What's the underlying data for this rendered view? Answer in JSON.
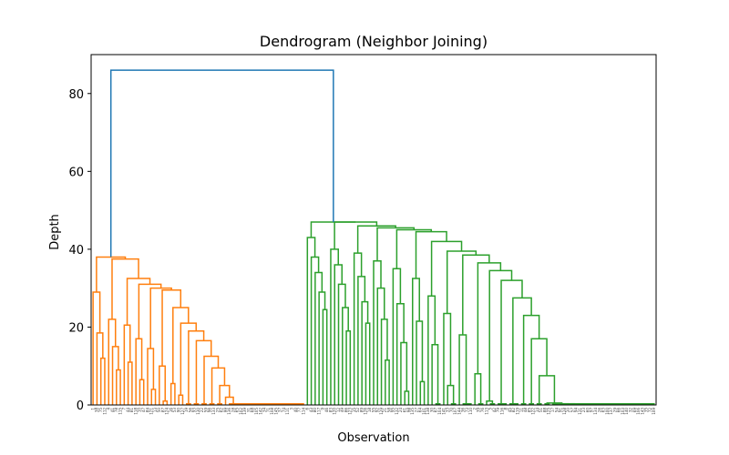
{
  "chart_data": {
    "type": "dendrogram",
    "title": "Dendrogram (Neighbor Joining)",
    "xlabel": "Observation",
    "ylabel": "Depth",
    "ylim": [
      0,
      90
    ],
    "yticks": [
      0,
      20,
      40,
      60,
      80
    ],
    "grid": false,
    "root_depth": 86,
    "colors": {
      "root": "#1f77b4",
      "cluster_1": "#ff7f0e",
      "cluster_2": "#2ca02c"
    },
    "clusters": [
      {
        "name": "cluster_1",
        "top_depth": 38,
        "leaf_count": 55,
        "merge_heights": [
          37.5,
          32.5,
          31,
          30,
          29.5,
          29,
          25,
          22,
          21,
          20.5,
          19,
          18.5,
          17,
          16.5,
          15,
          14.5,
          12.5,
          12,
          11,
          10,
          9.5,
          9,
          6.5,
          6,
          5.5,
          5,
          4.5,
          4,
          3.5,
          3,
          2.5,
          2,
          1.5,
          1,
          0.5
        ]
      },
      {
        "name": "cluster_2",
        "top_depth": 47,
        "leaf_count": 90,
        "merge_heights": [
          47,
          46,
          45.5,
          45,
          44.5,
          43,
          42,
          40,
          39.5,
          39,
          38.5,
          38,
          37,
          36.5,
          36,
          35,
          34.5,
          34,
          33,
          32.5,
          32,
          31,
          30,
          29,
          28,
          27.5,
          26.5,
          26,
          25,
          24.5,
          23.5,
          23,
          22,
          21.5,
          21,
          20,
          19,
          18,
          17,
          16,
          15.5,
          12,
          11.5,
          10.5,
          9,
          8,
          7.5,
          7,
          6,
          5,
          4,
          3.5,
          3,
          2,
          1.5,
          1,
          0.5
        ]
      }
    ]
  }
}
